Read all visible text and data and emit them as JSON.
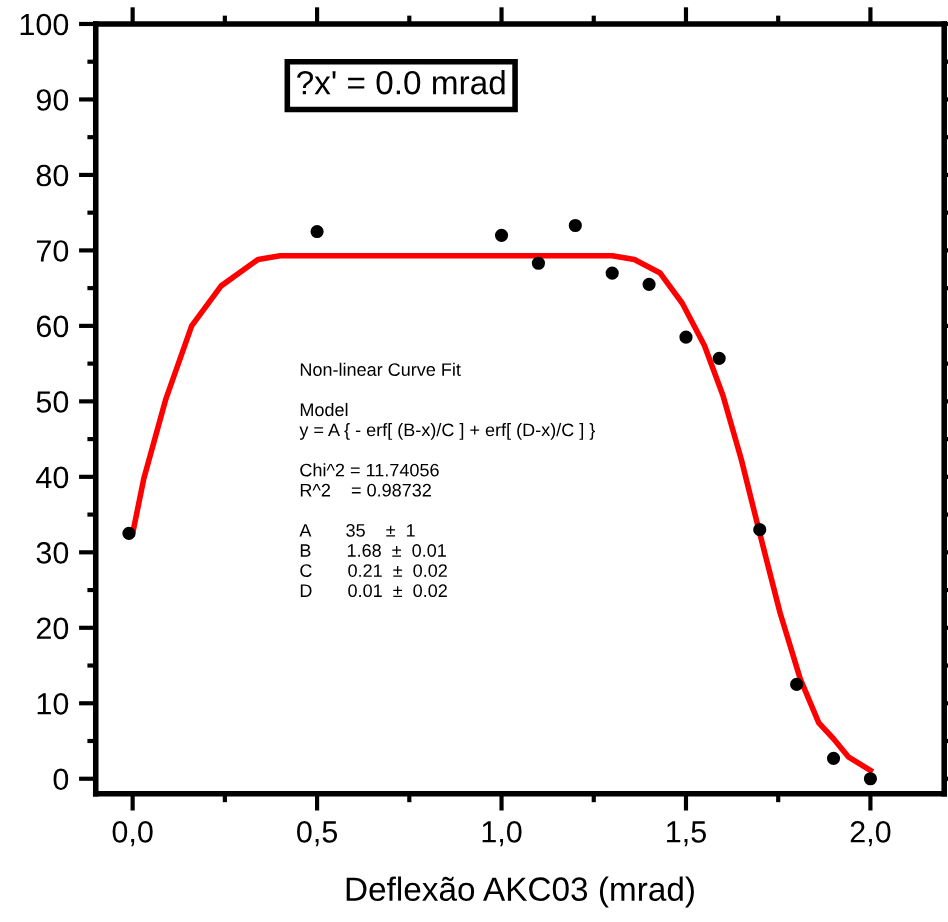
{
  "chart_data": {
    "type": "scatter",
    "xlabel": "Deflexão AKC03 (mrad)",
    "xlim": [
      -0.1,
      2.2
    ],
    "ylim": [
      -2,
      100
    ],
    "xticks": [
      {
        "value": 0,
        "label": "0,0"
      },
      {
        "value": 0.5,
        "label": "0,5"
      },
      {
        "value": 1.0,
        "label": "1,0"
      },
      {
        "value": 1.5,
        "label": "1,5"
      },
      {
        "value": 2.0,
        "label": "2,0"
      }
    ],
    "yticks": [
      0,
      10,
      20,
      30,
      40,
      50,
      60,
      70,
      80,
      90,
      100
    ],
    "grid": false,
    "legend": false,
    "series": [
      {
        "color": "#000000",
        "marker": "circle",
        "x": [
          -0.01,
          0.5,
          1.0,
          1.1,
          1.2,
          1.3,
          1.4,
          1.5,
          1.59,
          1.7,
          1.8,
          1.9,
          2.0
        ],
        "values": [
          32.5,
          72.5,
          72,
          68.3,
          73.3,
          67,
          65.5,
          58.5,
          55.7,
          33,
          12.5,
          2.7,
          0
        ]
      },
      {
        "type": "line",
        "color": "#ff0000",
        "line_style": "solid",
        "marker": "none",
        "x": [
          0.0,
          0.03,
          0.09,
          0.16,
          0.24,
          0.34,
          0.4,
          0.8,
          1.3,
          1.36,
          1.43,
          1.49,
          1.55,
          1.6,
          1.65,
          1.7,
          1.755,
          1.81,
          1.86,
          1.9,
          1.94,
          2.0
        ],
        "values": [
          32.5,
          39.7,
          50.3,
          60,
          65.3,
          68.8,
          69.3,
          69.3,
          69.3,
          68.8,
          67,
          63,
          57.4,
          50.8,
          42.3,
          32.5,
          22,
          13.2,
          7.4,
          5.3,
          2.9,
          1.1
        ]
      }
    ],
    "annotations": [
      "?x' = 0.0 mrad",
      "Non-linear Curve Fit\n\nModel\ny = A { - erf[ (B-x)/C ] + erf[ (D-x)/C ] }\n\nChi^2 = 11.74056\nR^2    = 0.98732\n\nA       35    ±  1\nB       1.68  ±  0.01\nC       0.21  ±  0.02\nD       0.01  ±  0.02"
    ]
  }
}
